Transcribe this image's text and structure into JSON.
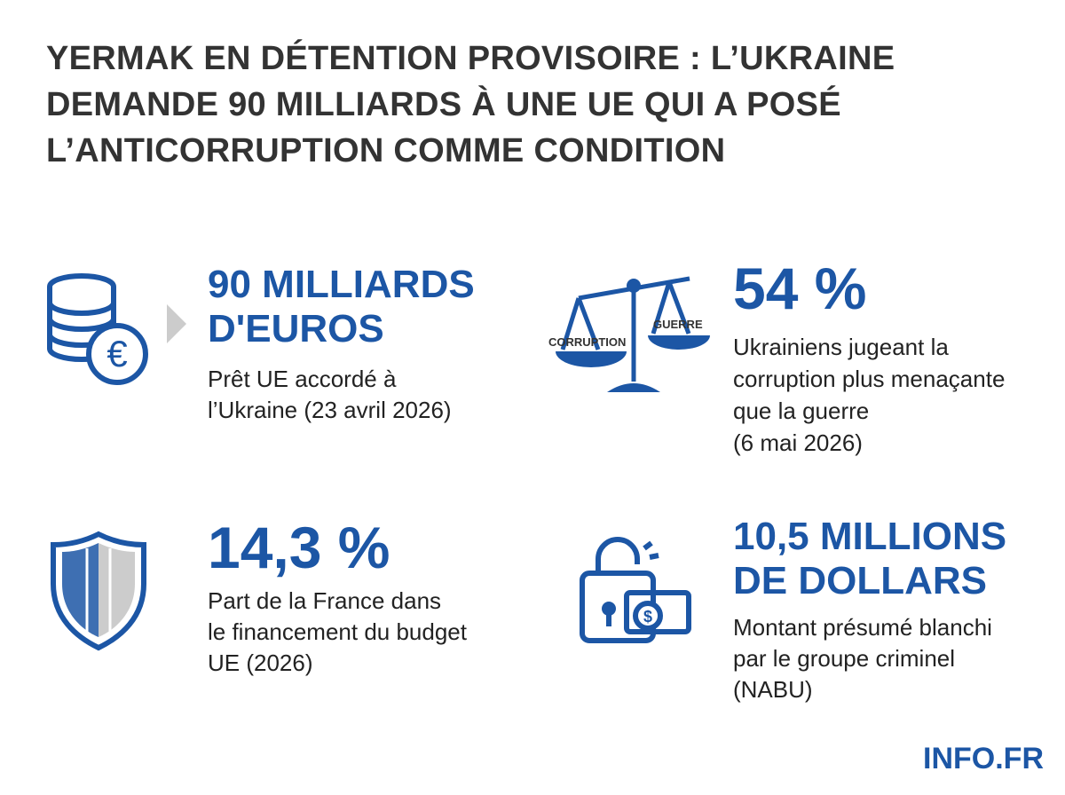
{
  "header": {
    "title": [
      "YERMAK EN DÉTENTION PROVISOIRE : L’UKRAINE",
      "DEMANDE 90 MILLIARDS À UNE UE QUI A POSÉ",
      "L’ANTICORRUPTION COMME CONDITION"
    ]
  },
  "stats": [
    {
      "value": [
        "90 MILLIARDS",
        "D'EUROS"
      ],
      "description": [
        "Prêt UE accordé à",
        "l’Ukraine (23 avril 2026)"
      ]
    },
    {
      "value": [
        "54 %"
      ],
      "description": [
        "Ukrainiens jugeant la",
        "corruption plus menaçante",
        "que la guerre",
        "(6 mai 2026)"
      ],
      "icon_labels": [
        "CORRUPTION",
        "GUERRE"
      ]
    },
    {
      "value": [
        "14,3 %"
      ],
      "description": [
        "Part de la France dans",
        "le financement du budget",
        "UE (2026)"
      ]
    },
    {
      "value": [
        "10,5 MILLIONS",
        "DE DOLLARS"
      ],
      "description": [
        "Montant présumé blanchi",
        "par le groupe criminel",
        "(NABU)"
      ]
    }
  ],
  "footer": {
    "brand": "INFO.FR"
  }
}
